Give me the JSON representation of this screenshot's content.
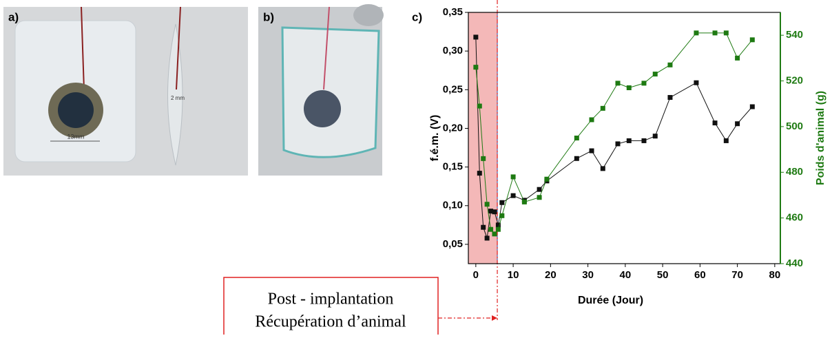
{
  "photos": {
    "a": {
      "label": "a)",
      "scale_front": "13mm",
      "scale_side": "2 mm"
    },
    "b": {
      "label": "b)"
    }
  },
  "annotation": {
    "lines": [
      "Post - implantation",
      "Récupération d’animal"
    ]
  },
  "chart_data": {
    "type": "line",
    "panel_label": "c)",
    "x_label": "Durée (Jour)",
    "y_label": "f.é.m. (V)",
    "y2_label": "Poids d'animal (g)",
    "x": [
      0,
      1,
      2,
      3,
      4,
      5,
      6,
      7,
      10,
      13,
      17,
      19,
      27,
      31,
      34,
      38,
      41,
      45,
      48,
      52,
      59,
      64,
      67,
      70,
      74
    ],
    "series": [
      {
        "name": "f.é.m.",
        "color": "#111111",
        "values": [
          0.318,
          0.142,
          0.072,
          0.058,
          0.093,
          0.092,
          0.075,
          0.104,
          0.113,
          0.107,
          0.121,
          0.132,
          0.161,
          0.171,
          0.148,
          0.18,
          0.184,
          0.184,
          0.19,
          0.24,
          0.259,
          0.207,
          0.184,
          0.206,
          0.228
        ]
      },
      {
        "name": "Poids d'animal",
        "color": "#1e7a12",
        "axis": "y2",
        "values": [
          526,
          509,
          486,
          466,
          455,
          453,
          455,
          461,
          478,
          467,
          469,
          477,
          495,
          503,
          508,
          519,
          517,
          519,
          523,
          527,
          541,
          541,
          541,
          530,
          538
        ]
      }
    ],
    "xlim": [
      -2,
      81.5
    ],
    "xticks": [
      0,
      10,
      20,
      30,
      40,
      50,
      60,
      70,
      80
    ],
    "ylim": [
      0.025,
      0.35
    ],
    "yticks": [
      {
        "value": 0.05,
        "label": "0,05"
      },
      {
        "value": 0.1,
        "label": "0,10"
      },
      {
        "value": 0.15,
        "label": "0,15"
      },
      {
        "value": 0.2,
        "label": "0,20"
      },
      {
        "value": 0.25,
        "label": "0,25"
      },
      {
        "value": 0.3,
        "label": "0,30"
      },
      {
        "value": 0.35,
        "label": "0,35"
      }
    ],
    "y2lim": [
      440,
      550
    ],
    "y2ticks": [
      440,
      460,
      480,
      500,
      520,
      540
    ],
    "highlight_range": [
      -2,
      5.75
    ],
    "highlight_color": "#f4b8b8"
  }
}
